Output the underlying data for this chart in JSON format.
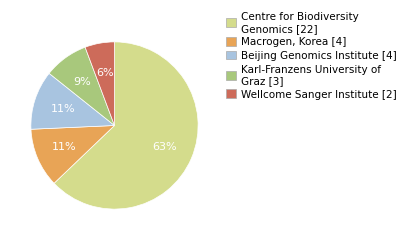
{
  "labels": [
    "Centre for Biodiversity\nGenomics [22]",
    "Macrogen, Korea [4]",
    "Beijing Genomics Institute [4]",
    "Karl-Franzens University of\nGraz [3]",
    "Wellcome Sanger Institute [2]"
  ],
  "values": [
    22,
    4,
    4,
    3,
    2
  ],
  "colors": [
    "#d4dc8c",
    "#e8a456",
    "#a8c4e0",
    "#a8c87c",
    "#cd6b5a"
  ],
  "background_color": "#ffffff",
  "text_color": "#ffffff",
  "legend_fontsize": 7.5,
  "autopct_fontsize": 8,
  "startangle": 90
}
